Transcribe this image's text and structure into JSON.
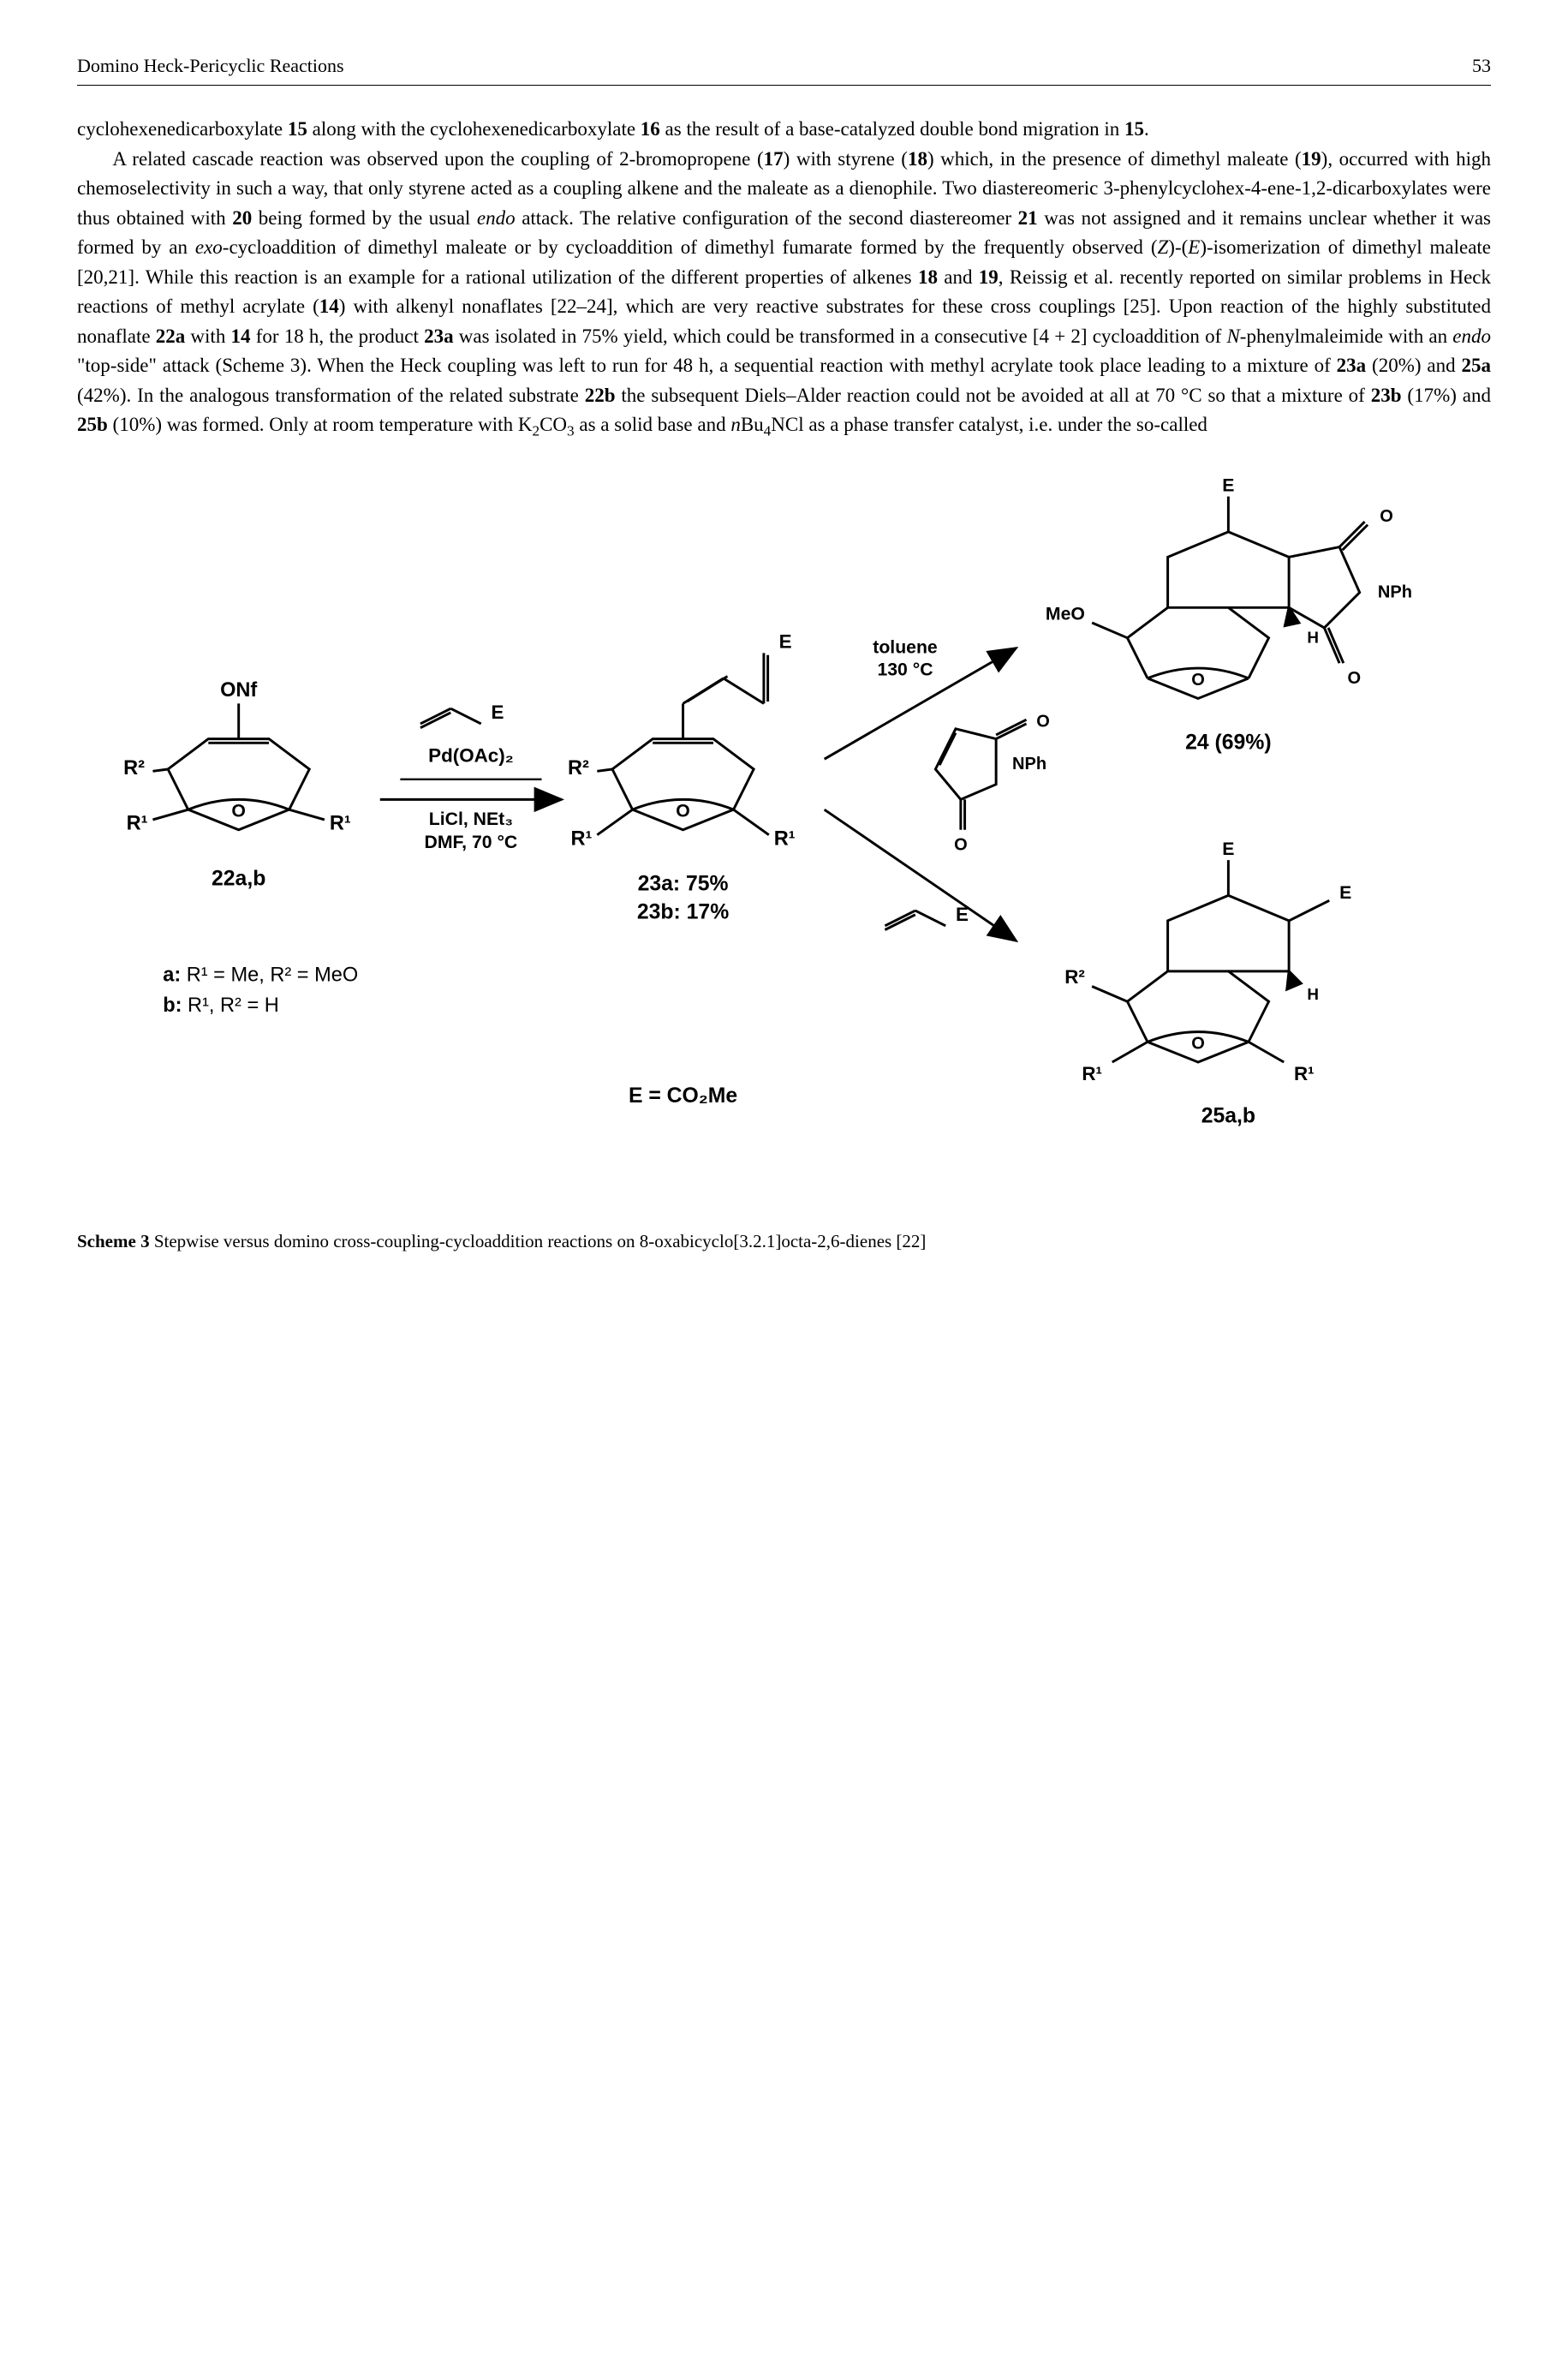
{
  "page": {
    "running_head": "Domino Heck-Pericyclic Reactions",
    "number": "53"
  },
  "paragraphs": {
    "p1_a": "cyclohexenedicarboxylate ",
    "p1_b": " along with the cyclohexenedicarboxylate ",
    "p1_c": " as the result of a base-catalyzed double bond migration in ",
    "num15": "15",
    "num16": "16",
    "num15b": "15",
    "period": ".",
    "p2_a": "A related cascade reaction was observed upon the coupling of 2-bromopropene (",
    "num17": "17",
    "p2_b": ") with styrene (",
    "num18": "18",
    "p2_c": ") which, in the presence of dimethyl maleate (",
    "num19": "19",
    "p2_d": "), occurred with high chemoselectivity in such a way, that only styrene acted as a coupling alkene and the maleate as a dienophile. Two diastereomeric 3-phenylcyclohex-4-ene-1,2-dicarboxylates were thus obtained with ",
    "num20": "20",
    "p2_e": " being formed by the usual ",
    "endo": "endo",
    "p2_f": " attack. The relative configuration of the second diastereomer ",
    "num21": "21",
    "p2_g": " was not assigned and it remains unclear whether it was formed by an ",
    "exo": "exo",
    "p2_h": "-cycloaddition of dimethyl maleate or by cycloaddition of dimethyl fumarate formed by the frequently observed (",
    "Z": "Z",
    "p2_i": ")-(",
    "E": "E",
    "p2_j": ")-isomerization of dimethyl maleate [20,21]. While this reaction is an example for a rational utilization of the different properties of alkenes ",
    "num18b": "18",
    "p2_k": " and ",
    "num19b": "19",
    "p2_l": ", Reissig et al. recently reported on similar problems in Heck reactions of methyl acrylate (",
    "num14": "14",
    "p2_m": ") with alkenyl nonaflates [22–24], which are very reactive substrates for these cross couplings [25]. Upon reaction of the highly substituted nonaflate ",
    "num22a": "22a",
    "p2_n": " with ",
    "num14b": "14",
    "p2_o": " for 18 h, the product ",
    "num23a": "23a",
    "p2_p": " was isolated in 75% yield, which could be transformed in a consecutive [4 + 2] cycloaddition of ",
    "N": "N",
    "p2_q": "-phenylmaleimide with an ",
    "endo2": "endo",
    "p2_r": " \"top-side\" attack (Scheme 3). When the Heck coupling was left to run for 48 h, a sequential reaction with methyl acrylate took place leading to a mixture of ",
    "num23a2": "23a",
    "p2_s": " (20%) and ",
    "num25a": "25a",
    "p2_t": " (42%). In the analogous transformation of the related substrate ",
    "num22b": "22b",
    "p2_u": " the subsequent Diels–Alder reaction could not be avoided at all at 70 °C so that a mixture of ",
    "num23b": "23b",
    "p2_v": " (17%) and ",
    "num25b": "25b",
    "p2_w": " (10%) was formed. Only at room temperature with K",
    "co3_2": "2",
    "p2_x": "CO",
    "co3_3": "3",
    "p2_y": " as a solid base and ",
    "n": "n",
    "bu4": "Bu",
    "bu4_4": "4",
    "p2_z": "NCl as a phase transfer catalyst, i.e. under the so-called"
  },
  "scheme": {
    "labels": {
      "ONf": "ONf",
      "R2": "R²",
      "R1": "R¹",
      "O": "O",
      "E": "E",
      "PdOAc2": "Pd(OAc)₂",
      "LiCl": "LiCl, NEt₃",
      "DMF": "DMF, 70 °C",
      "22ab": "22a,b",
      "23a_l": "23a: 75%",
      "23b_l": "23b: 17%",
      "a_sub": "a: R¹ = Me, R² = MeO",
      "b_sub": "b: R¹, R² = H",
      "ECO2Me": "E = CO₂Me",
      "toluene": "toluene",
      "t130": "130 °C",
      "MeO": "MeO",
      "H": "H",
      "NPh": "NPh",
      "24pct": "24 (69%)",
      "25ab": "25a,b"
    },
    "caption_label": "Scheme 3",
    "caption_text": " Stepwise versus domino cross-coupling-cycloaddition reactions on 8-oxabicyclo[3.2.1]octa-2,6-dienes [22]",
    "style": {
      "font_family": "Arial, Helvetica, sans-serif",
      "font_size_label": 20,
      "font_size_small": 17,
      "font_weight_bold": "bold",
      "stroke_color": "#000000",
      "stroke_width": 2.5,
      "background": "#ffffff"
    }
  }
}
